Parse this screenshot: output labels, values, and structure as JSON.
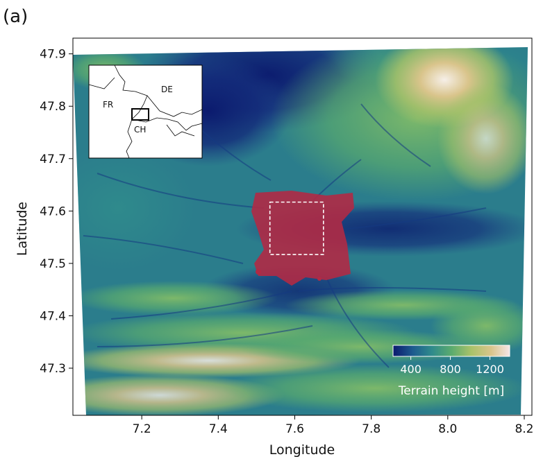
{
  "panel_label": "(a)",
  "axes": {
    "xlabel": "Longitude",
    "ylabel": "Latitude",
    "xlim": [
      7.02,
      8.22
    ],
    "ylim": [
      47.21,
      47.93
    ],
    "xticks": [
      7.2,
      7.4,
      7.6,
      7.8,
      8.0,
      8.2
    ],
    "yticks": [
      47.3,
      47.4,
      47.5,
      47.6,
      47.7,
      47.8,
      47.9
    ],
    "xtick_labels": [
      "7.2",
      "7.4",
      "7.6",
      "7.8",
      "8.0",
      "8.2"
    ],
    "ytick_labels": [
      "47.3",
      "47.4",
      "47.5",
      "47.6",
      "47.7",
      "47.8",
      "47.9"
    ]
  },
  "colorbar": {
    "label": "Terrain height [m]",
    "range": [
      220,
      1400
    ],
    "ticks": [
      400,
      800,
      1200
    ],
    "tick_labels": [
      "400",
      "800",
      "1200"
    ],
    "colormap": [
      "#0b1a6e",
      "#1d5b8e",
      "#2f8a8c",
      "#5aab6e",
      "#a9c26a",
      "#d9c48b",
      "#f4e6e6"
    ]
  },
  "study_box": {
    "lon": [
      7.535,
      7.675
    ],
    "lat": [
      47.517,
      47.617
    ]
  },
  "urban_color": "#b02a45",
  "inset": {
    "labels": {
      "fr": "FR",
      "de": "DE",
      "ch": "CH"
    }
  }
}
